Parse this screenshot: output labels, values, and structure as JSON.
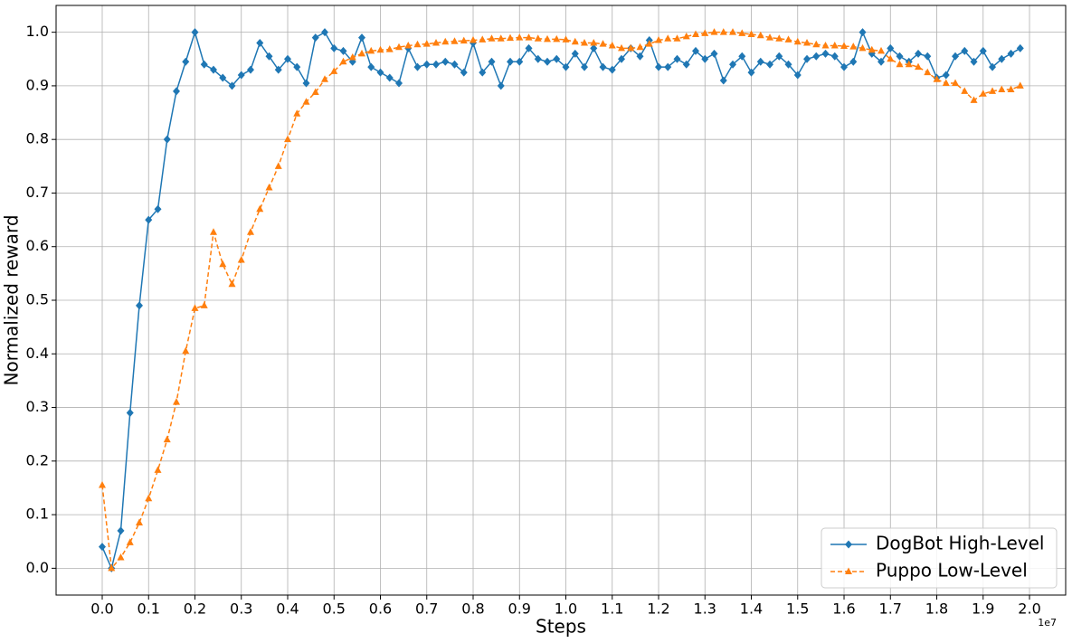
{
  "chart_data": {
    "type": "line",
    "xlabel": "Steps",
    "ylabel": "Normalized reward",
    "x_offset_text": "1e7",
    "x": [
      0,
      200000,
      400000,
      600000,
      800000,
      1000000,
      1200000,
      1400000,
      1600000,
      1800000,
      2000000,
      2200000,
      2400000,
      2600000,
      2800000,
      3000000,
      3200000,
      3400000,
      3600000,
      3800000,
      4000000,
      4200000,
      4400000,
      4600000,
      4800000,
      5000000,
      5200000,
      5400000,
      5600000,
      5800000,
      6000000,
      6200000,
      6400000,
      6600000,
      6800000,
      7000000,
      7200000,
      7400000,
      7600000,
      7800000,
      8000000,
      8200000,
      8400000,
      8600000,
      8800000,
      9000000,
      9200000,
      9400000,
      9600000,
      9800000,
      10000000,
      10200000,
      10400000,
      10600000,
      10800000,
      11000000,
      11200000,
      11400000,
      11600000,
      11800000,
      12000000,
      12200000,
      12400000,
      12600000,
      12800000,
      13000000,
      13200000,
      13400000,
      13600000,
      13800000,
      14000000,
      14200000,
      14400000,
      14600000,
      14800000,
      15000000,
      15200000,
      15400000,
      15600000,
      15800000,
      16000000,
      16200000,
      16400000,
      16600000,
      16800000,
      17000000,
      17200000,
      17400000,
      17600000,
      17800000,
      18000000,
      18200000,
      18400000,
      18600000,
      18800000,
      19000000,
      19200000,
      19400000,
      19600000,
      19800000
    ],
    "series": [
      {
        "name": "DogBot High-Level",
        "color": "#1f77b4",
        "marker": "diamond",
        "linestyle": "solid",
        "values": [
          0.04,
          0.0,
          0.07,
          0.29,
          0.49,
          0.65,
          0.67,
          0.8,
          0.89,
          0.945,
          1.0,
          0.94,
          0.93,
          0.915,
          0.9,
          0.92,
          0.93,
          0.98,
          0.955,
          0.93,
          0.95,
          0.935,
          0.905,
          0.99,
          1.0,
          0.97,
          0.965,
          0.945,
          0.99,
          0.935,
          0.925,
          0.915,
          0.905,
          0.97,
          0.935,
          0.94,
          0.94,
          0.945,
          0.94,
          0.925,
          0.98,
          0.925,
          0.945,
          0.9,
          0.945,
          0.945,
          0.97,
          0.95,
          0.945,
          0.95,
          0.935,
          0.96,
          0.935,
          0.97,
          0.935,
          0.93,
          0.95,
          0.97,
          0.955,
          0.985,
          0.935,
          0.935,
          0.95,
          0.94,
          0.965,
          0.95,
          0.96,
          0.91,
          0.94,
          0.955,
          0.925,
          0.945,
          0.94,
          0.955,
          0.94,
          0.92,
          0.95,
          0.955,
          0.96,
          0.955,
          0.935,
          0.945,
          1.0,
          0.96,
          0.945,
          0.97,
          0.955,
          0.945,
          0.96,
          0.955,
          0.915,
          0.92,
          0.955,
          0.965,
          0.945,
          0.965,
          0.935,
          0.95,
          0.96,
          0.97
        ]
      },
      {
        "name": "Puppo Low-Level",
        "color": "#ff7f0e",
        "marker": "triangle",
        "linestyle": "dashed",
        "values": [
          0.155,
          0.0,
          0.02,
          0.048,
          0.085,
          0.13,
          0.183,
          0.24,
          0.31,
          0.405,
          0.485,
          0.49,
          0.627,
          0.567,
          0.53,
          0.575,
          0.627,
          0.67,
          0.71,
          0.75,
          0.8,
          0.848,
          0.87,
          0.888,
          0.912,
          0.927,
          0.945,
          0.953,
          0.96,
          0.965,
          0.967,
          0.968,
          0.972,
          0.975,
          0.977,
          0.978,
          0.98,
          0.982,
          0.983,
          0.984,
          0.985,
          0.986,
          0.988,
          0.988,
          0.989,
          0.99,
          0.99,
          0.988,
          0.987,
          0.987,
          0.986,
          0.982,
          0.98,
          0.98,
          0.978,
          0.975,
          0.97,
          0.97,
          0.972,
          0.978,
          0.985,
          0.988,
          0.988,
          0.992,
          0.996,
          0.998,
          1.0,
          1.0,
          1.0,
          0.998,
          0.996,
          0.994,
          0.99,
          0.988,
          0.986,
          0.982,
          0.98,
          0.977,
          0.975,
          0.975,
          0.974,
          0.973,
          0.97,
          0.967,
          0.965,
          0.95,
          0.94,
          0.94,
          0.935,
          0.925,
          0.912,
          0.905,
          0.905,
          0.89,
          0.873,
          0.885,
          0.89,
          0.893,
          0.893,
          0.9
        ]
      }
    ],
    "xlim": [
      -995000,
      20780000
    ],
    "xticks": [
      {
        "value": 0,
        "label": "0.0"
      },
      {
        "value": 1000000,
        "label": "0.1"
      },
      {
        "value": 2000000,
        "label": "0.2"
      },
      {
        "value": 3000000,
        "label": "0.3"
      },
      {
        "value": 4000000,
        "label": "0.4"
      },
      {
        "value": 5000000,
        "label": "0.5"
      },
      {
        "value": 6000000,
        "label": "0.6"
      },
      {
        "value": 7000000,
        "label": "0.7"
      },
      {
        "value": 8000000,
        "label": "0.8"
      },
      {
        "value": 9000000,
        "label": "0.9"
      },
      {
        "value": 10000000,
        "label": "1.0"
      },
      {
        "value": 11000000,
        "label": "1.1"
      },
      {
        "value": 12000000,
        "label": "1.2"
      },
      {
        "value": 13000000,
        "label": "1.3"
      },
      {
        "value": 14000000,
        "label": "1.4"
      },
      {
        "value": 15000000,
        "label": "1.5"
      },
      {
        "value": 16000000,
        "label": "1.6"
      },
      {
        "value": 17000000,
        "label": "1.7"
      },
      {
        "value": 18000000,
        "label": "1.8"
      },
      {
        "value": 19000000,
        "label": "1.9"
      },
      {
        "value": 20000000,
        "label": "2.0"
      }
    ],
    "ylim": [
      -0.05,
      1.05
    ],
    "yticks": [
      {
        "value": 0,
        "label": "0.0"
      },
      0.1,
      0.2,
      0.3,
      0.4,
      0.5,
      0.6,
      0.7,
      0.8,
      0.9,
      {
        "value": 1,
        "label": "1.0"
      }
    ],
    "grid": true,
    "legend": "lower right"
  }
}
